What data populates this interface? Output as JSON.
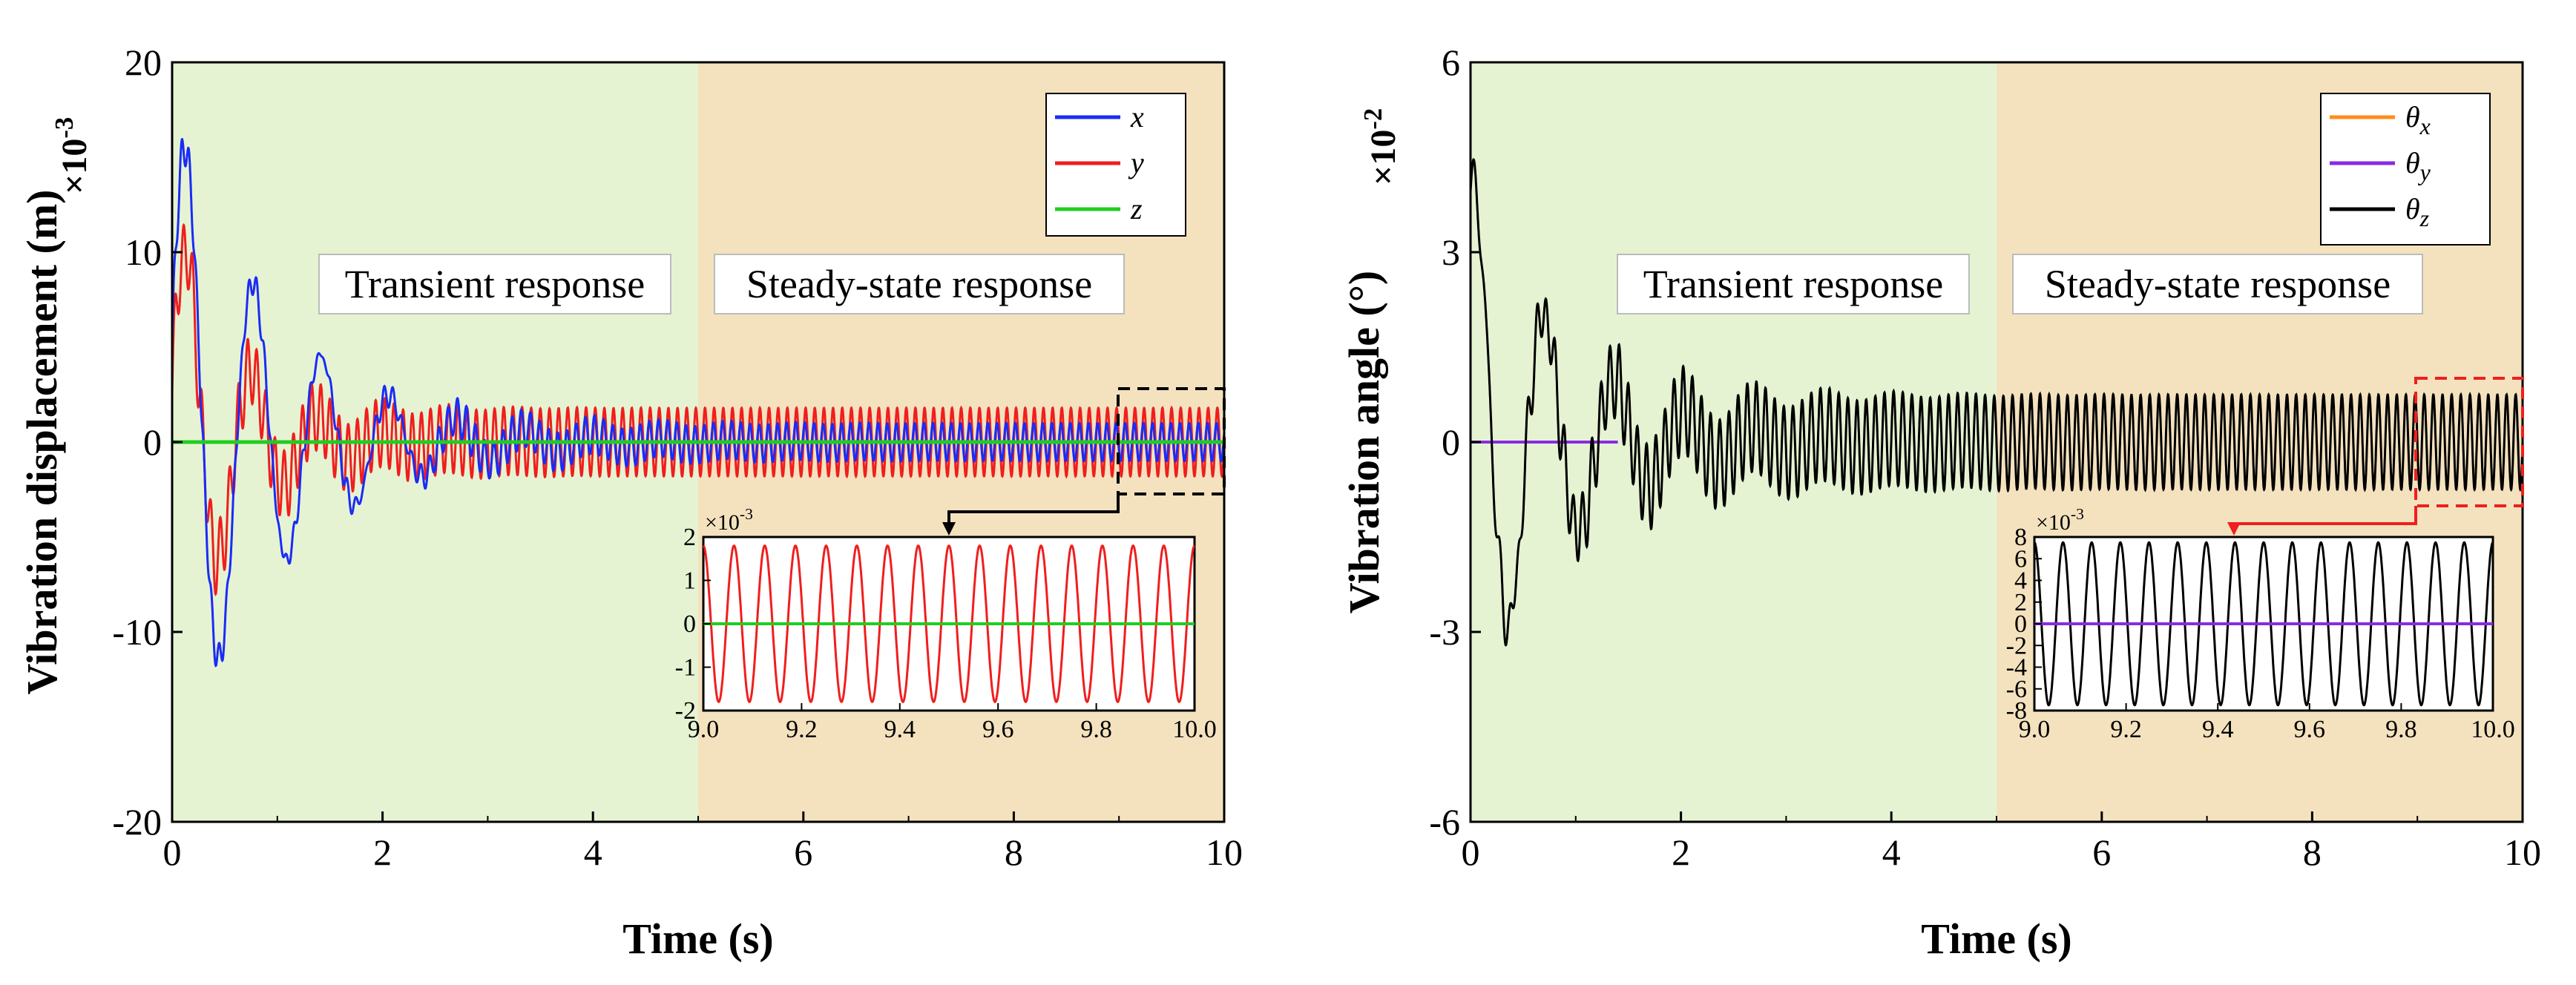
{
  "chart_data": [
    {
      "type": "line",
      "xlabel": "Time (s)",
      "ylabel": "Vibration displacement (m)",
      "y_multiplier": "×10-3",
      "xlim": [
        0,
        10
      ],
      "ylim": [
        -20,
        20
      ],
      "x_ticks": [
        "0",
        "2",
        "4",
        "6",
        "8",
        "10"
      ],
      "y_ticks": [
        "-20",
        "-10",
        "0",
        "10",
        "20"
      ],
      "regions": [
        {
          "label": "Transient response",
          "range": [
            0,
            5
          ],
          "color": "#e6f3d3"
        },
        {
          "label": "Steady-state response",
          "range": [
            5,
            10
          ],
          "color": "#f4e2bf"
        }
      ],
      "series": [
        {
          "name": "x",
          "color": "#1a2cf5",
          "peak": 17.5,
          "steady_amplitude": 1.8
        },
        {
          "name": "y",
          "color": "#f01e1e",
          "peak": 12.5,
          "steady_amplitude": 1.8
        },
        {
          "name": "z",
          "color": "#22cc22",
          "steady_amplitude": 0
        }
      ],
      "legend": [
        "x",
        "y",
        "z"
      ],
      "inset": {
        "xlim": [
          9.0,
          10.0
        ],
        "ylim": [
          -2,
          2
        ],
        "x_ticks": [
          "9.0",
          "9.2",
          "9.4",
          "9.6",
          "9.8",
          "10.0"
        ],
        "y_ticks": [
          "2",
          "1",
          "0",
          "-1",
          "-2"
        ],
        "y_multiplier": "×10-3",
        "cycles": 16,
        "amplitude": 1.8,
        "line_color": "#f01e1e",
        "zero_color": "#22cc22",
        "marker_color": "#000000"
      }
    },
    {
      "type": "line",
      "xlabel": "Time (s)",
      "ylabel": "Vibration angle (°)",
      "y_multiplier": "×10-2",
      "xlim": [
        0,
        10
      ],
      "ylim": [
        -6,
        6
      ],
      "x_ticks": [
        "0",
        "2",
        "4",
        "6",
        "8",
        "10"
      ],
      "y_ticks": [
        "-6",
        "-3",
        "0",
        "3",
        "6"
      ],
      "regions": [
        {
          "label": "Transient response",
          "range": [
            0,
            5
          ],
          "color": "#e6f3d3"
        },
        {
          "label": "Steady-state response",
          "range": [
            5,
            10
          ],
          "color": "#f4e2bf"
        }
      ],
      "series": [
        {
          "name": "θx",
          "color": "#ff8c1a",
          "steady_amplitude": 0
        },
        {
          "name": "θy",
          "color": "#8a2be2",
          "steady_amplitude": 0
        },
        {
          "name": "θz",
          "color": "#000000",
          "peak": 4.2,
          "steady_amplitude": 0.75
        }
      ],
      "legend": [
        "θx",
        "θy",
        "θz"
      ],
      "inset": {
        "xlim": [
          9.0,
          10.0
        ],
        "ylim": [
          -8,
          8
        ],
        "x_ticks": [
          "9.0",
          "9.2",
          "9.4",
          "9.6",
          "9.8",
          "10.0"
        ],
        "y_ticks": [
          "8",
          "6",
          "4",
          "2",
          "0",
          "-2",
          "-4",
          "-6",
          "-8"
        ],
        "y_multiplier": "×10-3",
        "cycles": 16,
        "amplitude": 7.5,
        "line_color": "#000000",
        "zero_color": "#8a2be2",
        "marker_color": "#f01e1e"
      }
    }
  ]
}
